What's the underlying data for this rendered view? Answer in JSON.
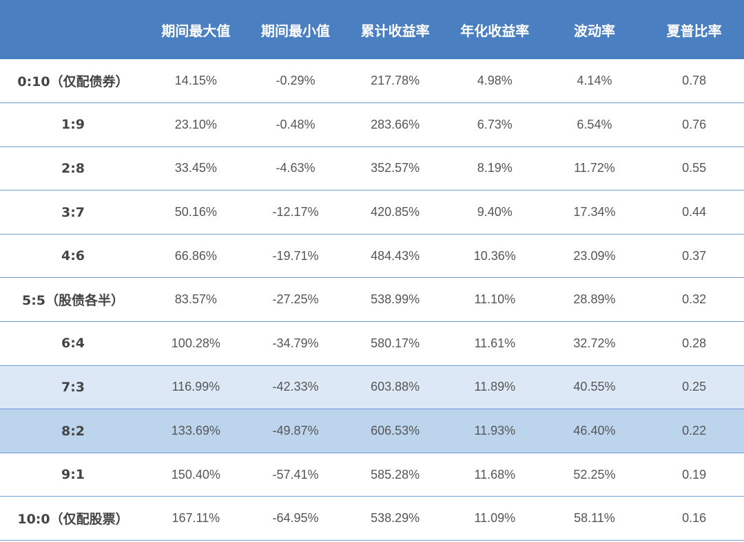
{
  "table": {
    "headers": [
      "",
      "期间最大值",
      "期间最小值",
      "累计收益率",
      "年化收益率",
      "波动率",
      "夏普比率"
    ],
    "rows": [
      {
        "label": "0:10（仅配债券）",
        "values": [
          "14.15%",
          "-0.29%",
          "217.78%",
          "4.98%",
          "4.14%",
          "0.78"
        ],
        "highlight": ""
      },
      {
        "label": "1:9",
        "values": [
          "23.10%",
          "-0.48%",
          "283.66%",
          "6.73%",
          "6.54%",
          "0.76"
        ],
        "highlight": ""
      },
      {
        "label": "2:8",
        "values": [
          "33.45%",
          "-4.63%",
          "352.57%",
          "8.19%",
          "11.72%",
          "0.55"
        ],
        "highlight": ""
      },
      {
        "label": "3:7",
        "values": [
          "50.16%",
          "-12.17%",
          "420.85%",
          "9.40%",
          "17.34%",
          "0.44"
        ],
        "highlight": ""
      },
      {
        "label": "4:6",
        "values": [
          "66.86%",
          "-19.71%",
          "484.43%",
          "10.36%",
          "23.09%",
          "0.37"
        ],
        "highlight": ""
      },
      {
        "label": "5:5（股债各半）",
        "values": [
          "83.57%",
          "-27.25%",
          "538.99%",
          "11.10%",
          "28.89%",
          "0.32"
        ],
        "highlight": ""
      },
      {
        "label": "6:4",
        "values": [
          "100.28%",
          "-34.79%",
          "580.17%",
          "11.61%",
          "32.72%",
          "0.28"
        ],
        "highlight": ""
      },
      {
        "label": "7:3",
        "values": [
          "116.99%",
          "-42.33%",
          "603.88%",
          "11.89%",
          "40.55%",
          "0.25"
        ],
        "highlight": "hl-light"
      },
      {
        "label": "8:2",
        "values": [
          "133.69%",
          "-49.87%",
          "606.53%",
          "11.93%",
          "46.40%",
          "0.22"
        ],
        "highlight": "hl-mid"
      },
      {
        "label": "9:1",
        "values": [
          "150.40%",
          "-57.41%",
          "585.28%",
          "11.68%",
          "52.25%",
          "0.19"
        ],
        "highlight": ""
      },
      {
        "label": "10:0（仅配股票）",
        "values": [
          "167.11%",
          "-64.95%",
          "538.29%",
          "11.09%",
          "58.11%",
          "0.16"
        ],
        "highlight": ""
      }
    ]
  },
  "colors": {
    "header_bg": "#4a7fc1",
    "row_border": "#6f9ad6",
    "highlight_light": "#dce8f5",
    "highlight_mid": "#bcd5ec"
  }
}
